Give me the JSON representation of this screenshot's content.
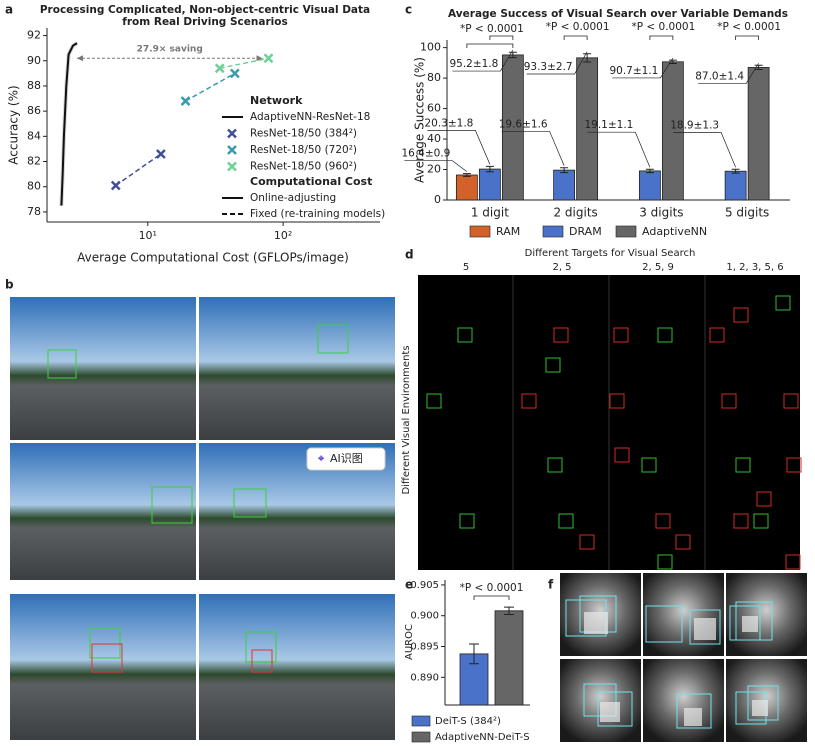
{
  "panel_letters": [
    "a",
    "b",
    "c",
    "d",
    "e",
    "f"
  ],
  "panel_b": {
    "button": "AI识图"
  },
  "panel_d": {
    "title": "Different Targets for Visual Search",
    "columns": [
      "5",
      "2, 5",
      "2, 5, 9",
      "1, 2, 3, 5, 6"
    ],
    "row_label": "Different Visual Environments"
  },
  "chart_data": [
    {
      "type": "scatter",
      "title": [
        "Processing Complicated, Non-object-centric Visual Data",
        "from Real Driving Scenarios"
      ],
      "xlabel": "Average Computational Cost (GFLOPs/image)",
      "ylabel": "Accuracy (%)",
      "xscale": "log",
      "xlim": [
        1.8,
        520
      ],
      "xticks": [
        {
          "value": 10,
          "label": "10¹"
        },
        {
          "value": 100,
          "label": "10²"
        }
      ],
      "ylim": [
        77.2,
        92.6
      ],
      "yticks": [
        78,
        80,
        82,
        84,
        86,
        88,
        90,
        92
      ],
      "series": [
        {
          "name": "AdaptiveNN-ResNet-18",
          "color": "#111111",
          "marker": "none",
          "dashed": false,
          "x": [
            2.3,
            2.35,
            2.4,
            2.5,
            2.6,
            2.8,
            3.0
          ],
          "y": [
            78.5,
            81,
            84,
            88,
            90.5,
            91.2,
            91.4
          ]
        },
        {
          "name": "ResNet-18/50 (384²)",
          "color": "#3f4f9a",
          "marker": "x",
          "dashed": true,
          "x": [
            5.8,
            12.5
          ],
          "y": [
            80.1,
            82.6
          ]
        },
        {
          "name": "ResNet-18/50 (720²)",
          "color": "#3a9bb0",
          "marker": "x",
          "dashed": true,
          "x": [
            19,
            44
          ],
          "y": [
            86.8,
            89.0
          ]
        },
        {
          "name": "ResNet-18/50 (960²)",
          "color": "#6fcf97",
          "marker": "x",
          "dashed": true,
          "x": [
            34,
            78
          ],
          "y": [
            89.4,
            90.2
          ]
        }
      ],
      "legend_headings": [
        "Network",
        "Computational Cost"
      ],
      "line_styles": [
        {
          "name": "Online-adjusting",
          "dashed": false
        },
        {
          "name": "Fixed (re-training models)",
          "dashed": true
        }
      ],
      "annotation": "27.9× saving"
    },
    {
      "type": "bar",
      "title": "Average Success of Visual Search over Variable Demands",
      "ylabel": "Average Success (%)",
      "categories": [
        "1 digit",
        "2 digits",
        "3 digits",
        "5 digits"
      ],
      "ylim": [
        0,
        105
      ],
      "yticks": [
        0,
        20,
        40,
        60,
        80,
        100
      ],
      "series": [
        {
          "name": "RAM",
          "color": "#d2622a",
          "values": [
            16.4,
            null,
            null,
            null
          ],
          "errors": [
            0.9,
            null,
            null,
            null
          ],
          "value_labels": [
            "16.4±0.9",
            null,
            null,
            null
          ]
        },
        {
          "name": "DRAM",
          "color": "#4a72c8",
          "values": [
            20.3,
            19.6,
            19.1,
            18.9
          ],
          "errors": [
            1.8,
            1.6,
            1.1,
            1.3
          ],
          "value_labels": [
            "20.3±1.8",
            "19.6±1.6",
            "19.1±1.1",
            "18.9±1.3"
          ]
        },
        {
          "name": "AdaptiveNN",
          "color": "#666666",
          "values": [
            95.2,
            93.3,
            90.7,
            87.0
          ],
          "errors": [
            1.8,
            2.7,
            1.1,
            1.4
          ],
          "value_labels": [
            "95.2±1.8",
            "93.3±2.7",
            "90.7±1.1",
            "87.0±1.4"
          ]
        }
      ],
      "annotations": [
        "*P < 0.0001",
        "*P < 0.0001",
        "*P < 0.0001",
        "*P < 0.0001"
      ]
    },
    {
      "type": "bar",
      "ylabel": "AUROC",
      "ylim": [
        0.8855,
        0.9058
      ],
      "yticks": [
        {
          "value": 0.89,
          "label": "0.890"
        },
        {
          "value": 0.895,
          "label": "0.895"
        },
        {
          "value": 0.9,
          "label": "0.900"
        },
        {
          "value": 0.905,
          "label": "0.905"
        }
      ],
      "series": [
        {
          "name": "DeiT-S (384²)",
          "color": "#4a72c8",
          "values": [
            0.8938
          ],
          "errors": [
            0.0016
          ]
        },
        {
          "name": "AdaptiveNN-DeiT-S",
          "color": "#666666",
          "values": [
            0.9008
          ],
          "errors": [
            0.0006
          ]
        }
      ],
      "annotation": "*P < 0.0001"
    }
  ]
}
